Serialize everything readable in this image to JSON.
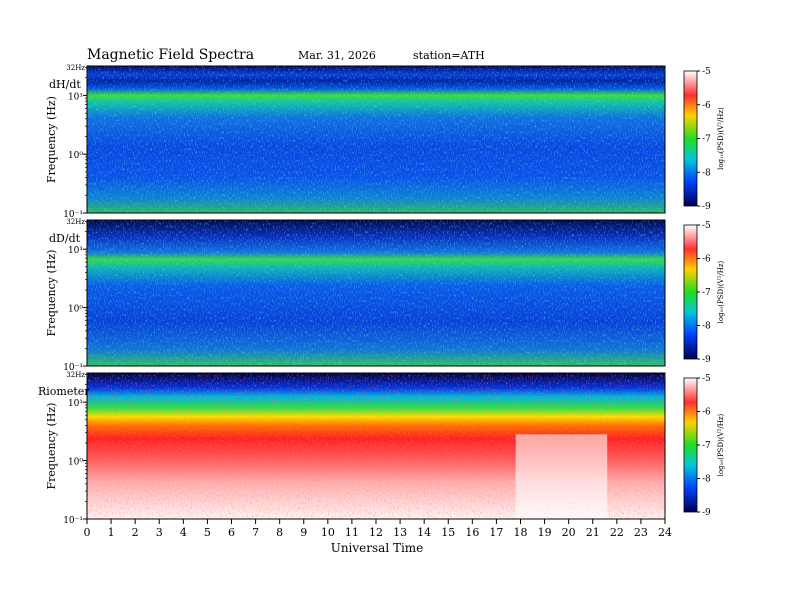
{
  "header": {
    "title": "Magnetic  Field  Spectra",
    "date": "Mar. 31, 2026",
    "station": "station=ATH"
  },
  "chart_data": [
    {
      "type": "heatmap",
      "panel_label": "dH/dt",
      "top_label": "32Hz",
      "ylabel": "Frequency  (Hz)",
      "ytick_labels": [
        "10¹",
        "10⁰",
        "10⁻¹"
      ],
      "ylim_log10": [
        -1,
        1.5
      ],
      "xlim": [
        0,
        24
      ],
      "colorbar": {
        "range": [
          -5,
          -9
        ],
        "ticks": [
          "-5",
          "-6",
          "-7",
          "-8",
          "-9"
        ],
        "label": "log₁₀(PSD)(V²/Hz)"
      }
    },
    {
      "type": "heatmap",
      "panel_label": "dD/dt",
      "top_label": "32Hz",
      "ylabel": "Frequency  (Hz)",
      "ytick_labels": [
        "10¹",
        "10⁰",
        "10⁻¹"
      ],
      "ylim_log10": [
        -1,
        1.5
      ],
      "xlim": [
        0,
        24
      ],
      "colorbar": {
        "range": [
          -5,
          -9
        ],
        "ticks": [
          "-5",
          "-6",
          "-7",
          "-8",
          "-9"
        ],
        "label": "log₁₀(PSD)(V²/Hz)"
      }
    },
    {
      "type": "heatmap",
      "panel_label": "Riometer",
      "top_label": "32Hz",
      "ylabel": "Frequency  (Hz)",
      "ytick_labels": [
        "10¹",
        "10⁰",
        "10⁻¹"
      ],
      "ylim_log10": [
        -1,
        1.5
      ],
      "xlim": [
        0,
        24
      ],
      "colorbar": {
        "range": [
          -5,
          -9
        ],
        "ticks": [
          "-5",
          "-6",
          "-7",
          "-8",
          "-9"
        ],
        "label": "log₁₀(PSD)(V²/Hz)"
      }
    }
  ],
  "x_axis": {
    "label": "Universal Time",
    "ticks": [
      "0",
      "1",
      "2",
      "3",
      "4",
      "5",
      "6",
      "7",
      "8",
      "9",
      "10",
      "11",
      "12",
      "13",
      "14",
      "15",
      "16",
      "17",
      "18",
      "19",
      "20",
      "21",
      "22",
      "23",
      "24"
    ]
  }
}
